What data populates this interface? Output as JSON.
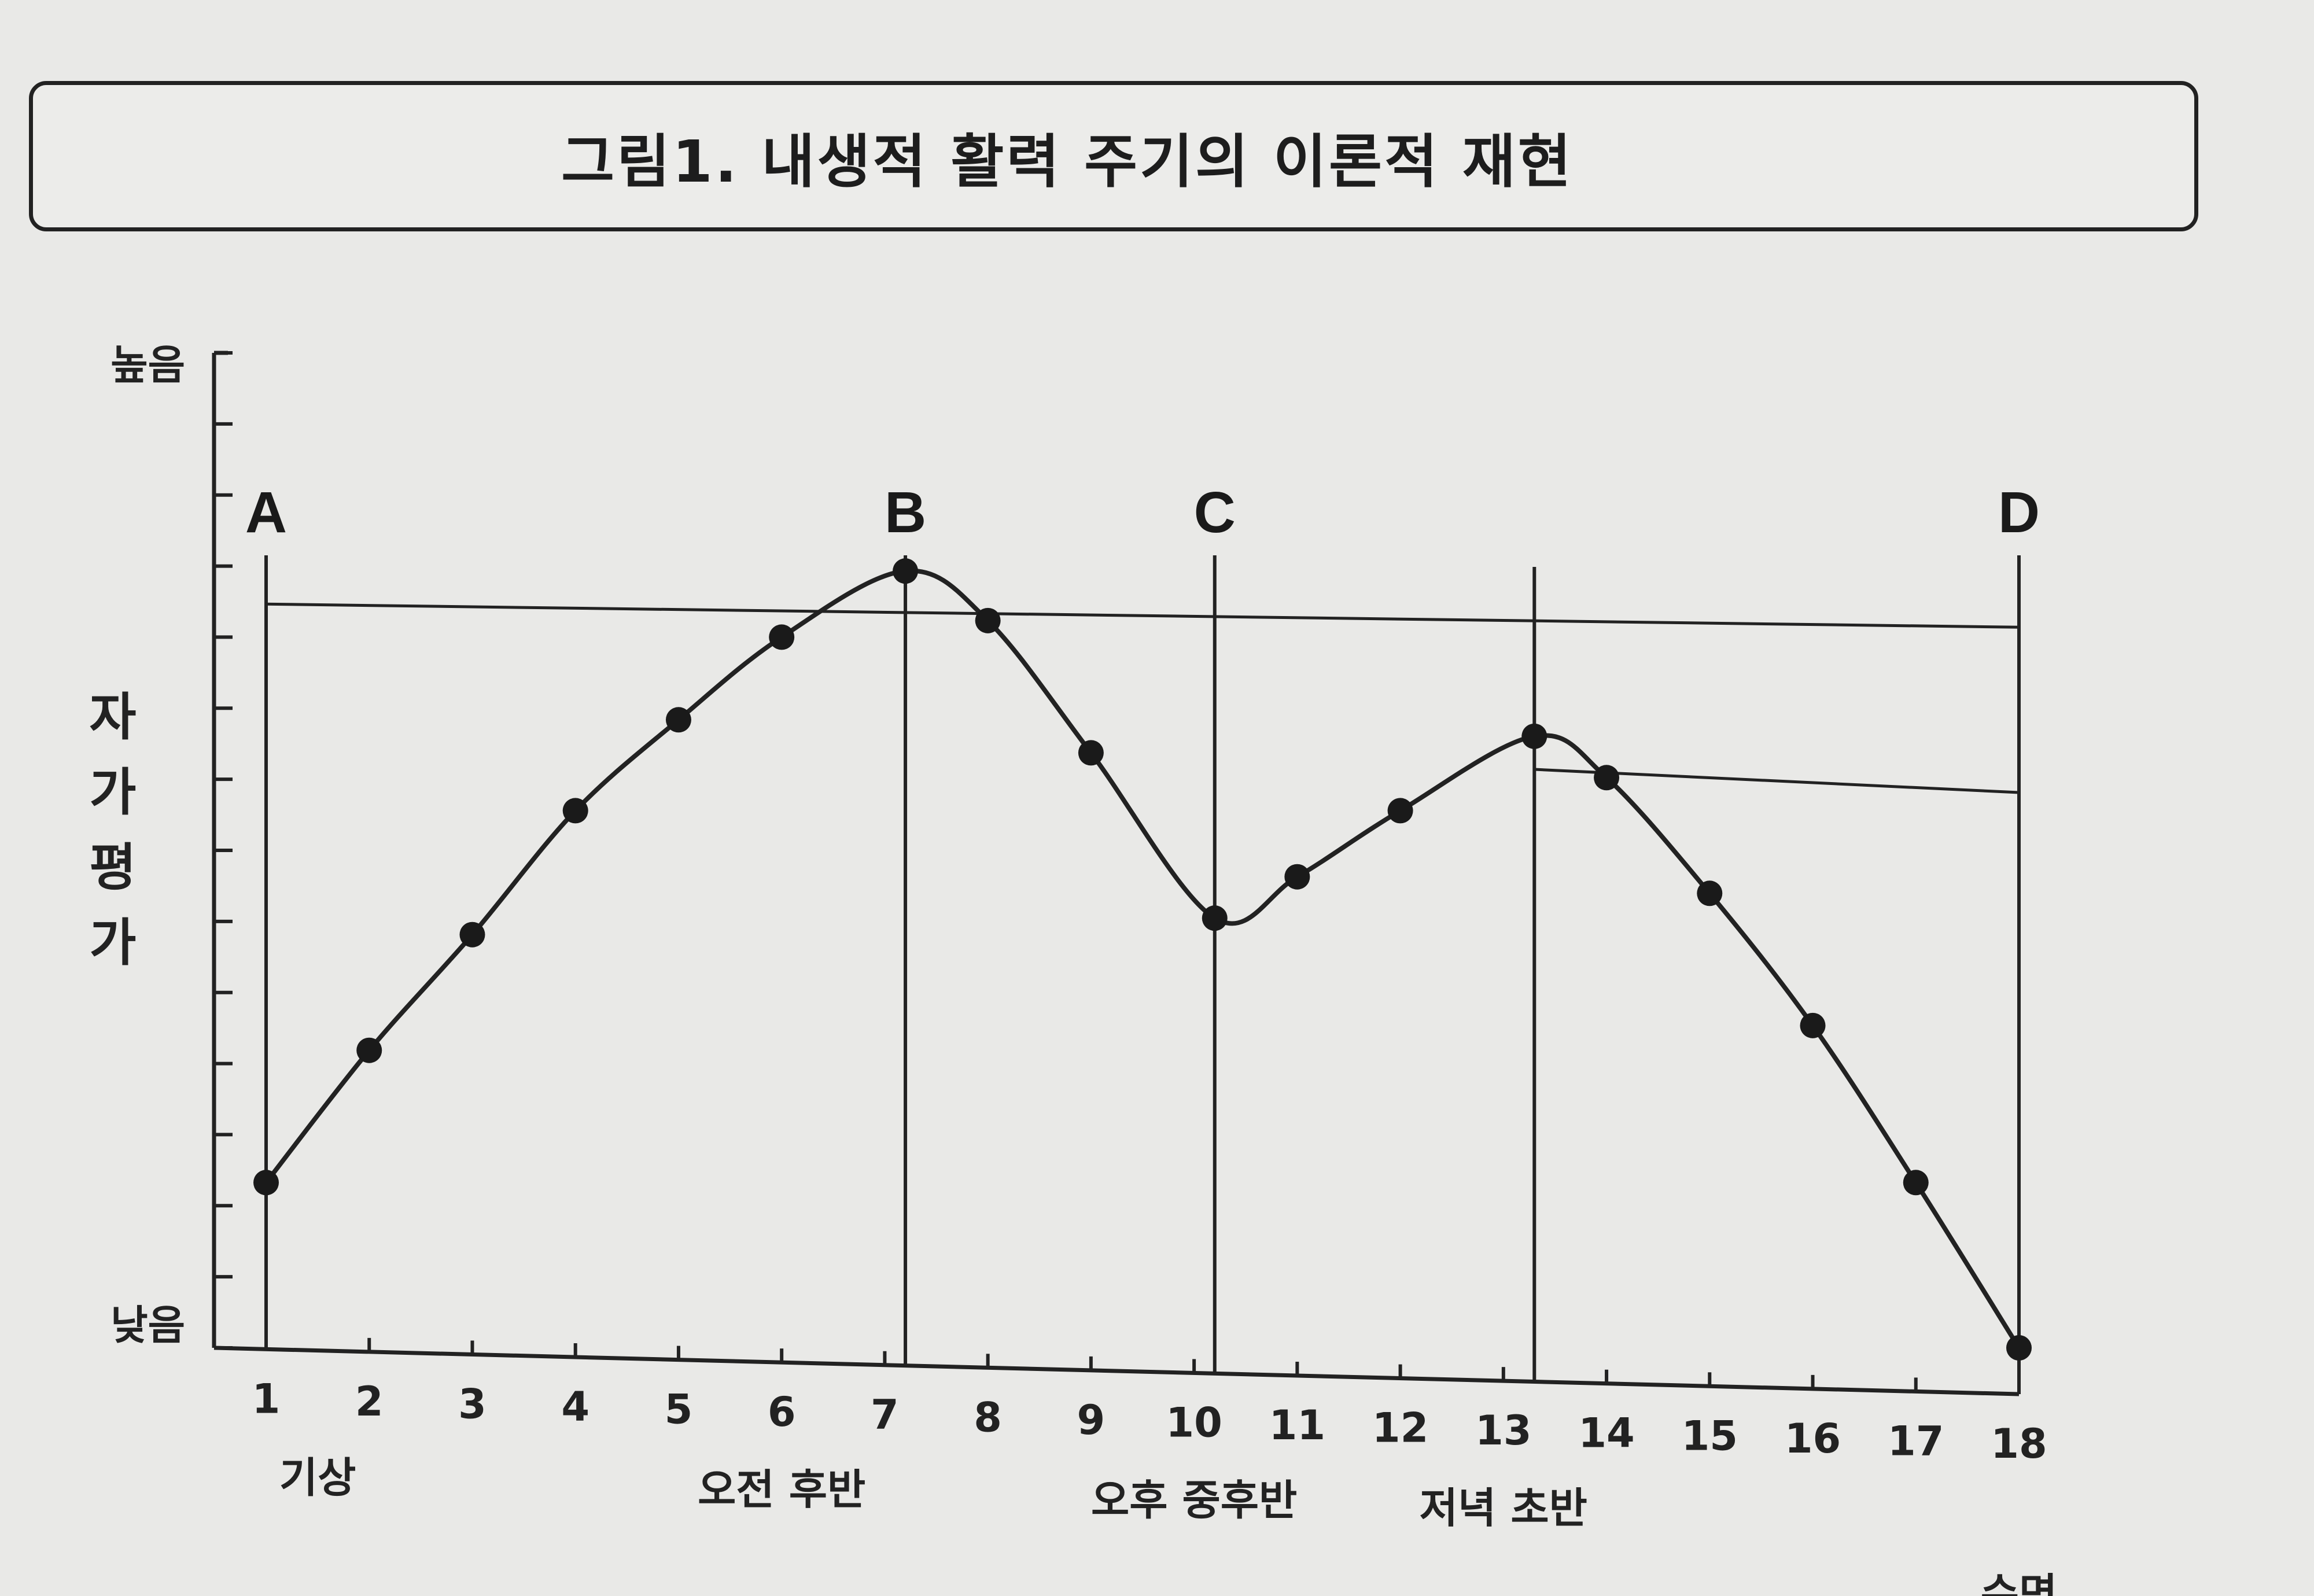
{
  "chart_data": {
    "type": "line",
    "title": "그림1. 내생적 활력 주기의 이론적 재현",
    "ylabel": "자가평가",
    "y_high_label": "높음",
    "y_low_label": "낮음",
    "x_ticks": [
      "1",
      "2",
      "3",
      "4",
      "5",
      "6",
      "7",
      "8",
      "9",
      "10",
      "11",
      "12",
      "13",
      "14",
      "15",
      "16",
      "17",
      "18"
    ],
    "x_annotations": [
      {
        "x": 1.5,
        "label": "기상"
      },
      {
        "x": 6,
        "label": "오전 후반"
      },
      {
        "x": 10,
        "label": "오후 중후반"
      },
      {
        "x": 13,
        "label": "저녁 초반"
      },
      {
        "x": 18,
        "label": "수면"
      }
    ],
    "markers": [
      {
        "label": "A",
        "x": 1
      },
      {
        "label": "B",
        "x": 7.2
      },
      {
        "label": "C",
        "x": 10.2
      },
      {
        "label": "D",
        "x": 18
      }
    ],
    "reference_lines": [
      {
        "from_x": 1,
        "to_x": 18,
        "y": 9
      },
      {
        "from_x": 13.3,
        "to_x": 18,
        "y": 7
      }
    ],
    "extra_vertical_line_x": 13.3,
    "ylim": [
      0,
      14
    ],
    "xlim": [
      1,
      18
    ],
    "grid": false,
    "series": [
      {
        "values": [
          {
            "x": 1,
            "y": 2
          },
          {
            "x": 2,
            "y": 3.6
          },
          {
            "x": 3,
            "y": 5.0
          },
          {
            "x": 4,
            "y": 6.5
          },
          {
            "x": 5,
            "y": 7.6
          },
          {
            "x": 6,
            "y": 8.6
          },
          {
            "x": 7.2,
            "y": 9.4
          },
          {
            "x": 8,
            "y": 8.8
          },
          {
            "x": 9,
            "y": 7.2
          },
          {
            "x": 10.2,
            "y": 5.2
          },
          {
            "x": 11,
            "y": 5.7
          },
          {
            "x": 12,
            "y": 6.5
          },
          {
            "x": 13.3,
            "y": 7.4
          },
          {
            "x": 14,
            "y": 6.9
          },
          {
            "x": 15,
            "y": 5.5
          },
          {
            "x": 16,
            "y": 3.9
          },
          {
            "x": 17,
            "y": 2.0
          },
          {
            "x": 18,
            "y": 0
          }
        ]
      }
    ]
  }
}
